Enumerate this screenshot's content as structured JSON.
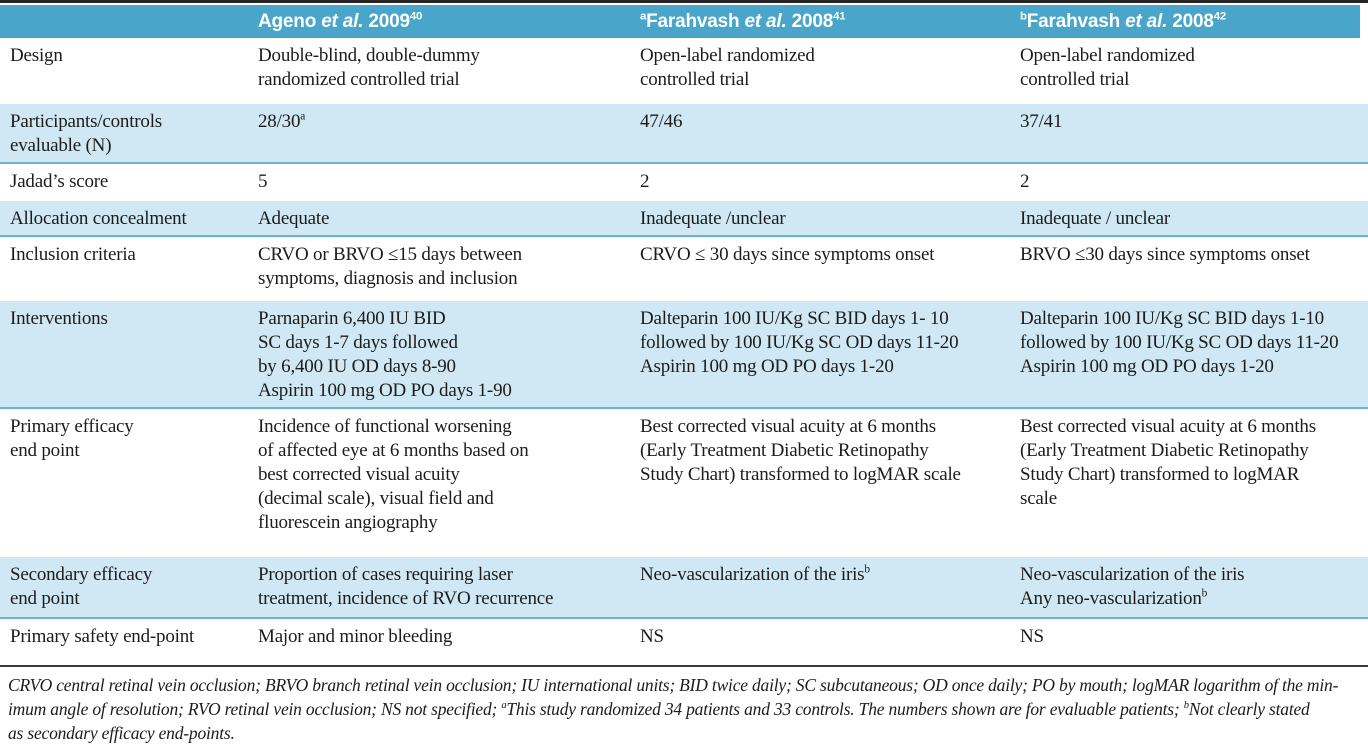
{
  "header": {
    "columns": [
      "",
      "Ageno ~et al.~ 2009^40^",
      "^a^Farahvash ~et al.~ 2008^41^",
      "^b^Farahvash ~et al.~ 2008^42^"
    ]
  },
  "table": {
    "rows": [
      {
        "label": [
          "Design"
        ],
        "cells": [
          [
            "Double-blind, double-dummy",
            "randomized controlled trial"
          ],
          [
            "Open-label randomized",
            "controlled trial"
          ],
          [
            "Open-label randomized",
            "controlled trial"
          ]
        ]
      },
      {
        "label": [
          "Participants/controls",
          "evaluable (N)"
        ],
        "cells": [
          [
            "28/30^a^"
          ],
          [
            "47/46"
          ],
          [
            "37/41"
          ]
        ]
      },
      {
        "label": [
          "Jadad’s score"
        ],
        "cells": [
          [
            "5"
          ],
          [
            "2"
          ],
          [
            "2"
          ]
        ]
      },
      {
        "label": [
          "Allocation concealment"
        ],
        "cells": [
          [
            "Adequate"
          ],
          [
            "Inadequate /unclear"
          ],
          [
            "Inadequate / unclear"
          ]
        ]
      },
      {
        "label": [
          "Inclusion criteria"
        ],
        "cells": [
          [
            "CRVO or BRVO ≤15 days between",
            "symptoms, diagnosis and inclusion"
          ],
          [
            "CRVO ≤ 30 days since symptoms onset"
          ],
          [
            "BRVO ≤30 days since symptoms onset"
          ]
        ]
      },
      {
        "label": [
          "Interventions"
        ],
        "cells": [
          [
            "Parnaparin 6,400 IU BID",
            "SC days 1-7 days followed",
            "by 6,400 IU OD days 8-90",
            "Aspirin 100 mg OD PO days 1-90"
          ],
          [
            "Dalteparin 100 IU/Kg SC BID days 1- 10",
            "followed by 100 IU/Kg SC OD days 11-20",
            "Aspirin 100 mg OD PO days 1-20"
          ],
          [
            "Dalteparin 100 IU/Kg SC BID days 1-10",
            "followed by 100 IU/Kg SC OD days 11-20",
            "Aspirin 100 mg OD PO days 1-20"
          ]
        ]
      },
      {
        "label": [
          "Primary efficacy",
          "end point"
        ],
        "cells": [
          [
            "Incidence of functional  worsening",
            "of affected eye at 6 months based on",
            "best corrected visual acuity",
            "(decimal scale), visual field and",
            "fluorescein angiography"
          ],
          [
            "Best corrected visual acuity at 6 months",
            "(Early Treatment Diabetic Retinopathy",
            "Study Chart) transformed to logMAR scale"
          ],
          [
            "Best corrected visual acuity at 6 months",
            "(Early Treatment Diabetic Retinopathy",
            "Study Chart) transformed to logMAR",
            "scale"
          ]
        ]
      },
      {
        "label": [
          "Secondary efficacy",
          "end point"
        ],
        "cells": [
          [
            "Proportion of cases requiring laser",
            "treatment, incidence of RVO recurrence"
          ],
          [
            "Neo-vascularization of the iris^b^"
          ],
          [
            "Neo-vascularization of the iris",
            "Any neo-vascularization^b^"
          ]
        ]
      },
      {
        "label": [
          "Primary safety end-point"
        ],
        "cells": [
          [
            "Major and minor bleeding"
          ],
          [
            "NS"
          ],
          [
            "NS"
          ]
        ]
      }
    ]
  },
  "footnote": {
    "lines": [
      "CRVO central retinal vein occlusion; BRVO branch retinal vein occlusion; IU international units; BID twice daily; SC subcutaneous; OD once daily; PO by mouth; logMAR logarithm of the min-",
      "imum angle of resolution; RVO retinal vein occlusion; NS not specified; ^a^This study randomized 34 patients and 33 controls. The numbers shown are for evaluable patients; ^b^Not clearly stated",
      "as secondary efficacy end-points."
    ]
  },
  "colors": {
    "header_bg": "#49a5c9",
    "shaded_row_bg": "#cfe8f3",
    "shaded_row_border": "#68b4d3",
    "top_rule": "#242424",
    "text": "#1c1c1c"
  }
}
